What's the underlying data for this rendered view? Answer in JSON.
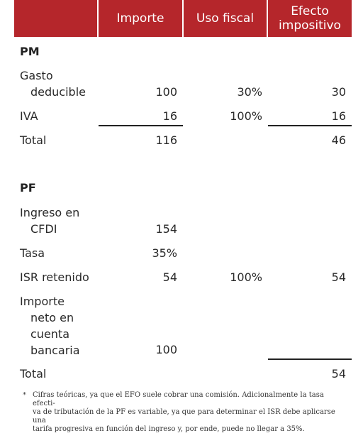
{
  "header": {
    "col_importe": "Importe",
    "col_uso_fiscal": "Uso fiscal",
    "col_efecto_1": "Efecto",
    "col_efecto_2": "impositivo"
  },
  "pm": {
    "title": "PM",
    "gasto_label_1": "Gasto",
    "gasto_label_2": "deducible",
    "gasto_importe": "100",
    "gasto_uso": "30%",
    "gasto_efecto": "30",
    "iva_label": "IVA",
    "iva_importe": "16",
    "iva_uso": "100%",
    "iva_efecto": "16",
    "total_label": "Total",
    "total_importe": "116",
    "total_efecto": "46"
  },
  "pf": {
    "title": "PF",
    "ingreso_label_1": "Ingreso en",
    "ingreso_label_2": "CFDI",
    "ingreso_importe": "154",
    "tasa_label": "Tasa",
    "tasa_importe": "35%",
    "isr_label": "ISR retenido",
    "isr_importe": "54",
    "isr_uso": "100%",
    "isr_efecto": "54",
    "neto_label_1": "Importe",
    "neto_label_2": "neto en",
    "neto_label_3": "cuenta",
    "neto_label_4": "bancaria",
    "neto_importe": "100",
    "total_label": "Total",
    "total_efecto": "54"
  },
  "footnote": {
    "marker": "*",
    "line1": "Cifras teóricas, ya que el EFO suele cobrar una comisión. Adicionalmente la tasa efecti-",
    "line2": "va de tributación de la PF es variable, ya que para determinar el ISR debe aplicarse una",
    "line3": "tarifa progresiva en función del ingreso y, por ende, puede no llegar a 35%."
  },
  "colors": {
    "header_bg": "#b5262b",
    "header_text": "#ffffff",
    "text": "#2a2a2a"
  }
}
